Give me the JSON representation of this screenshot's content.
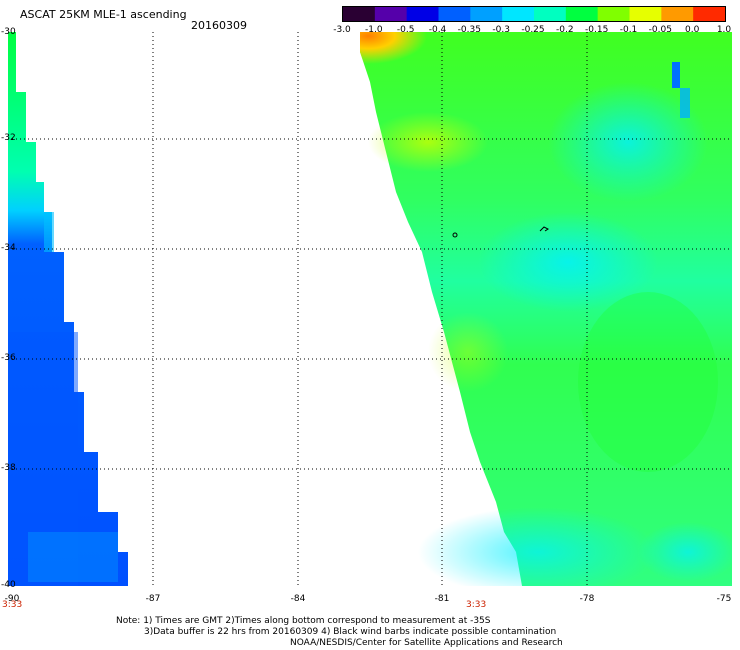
{
  "header": {
    "title": "ASCAT 25KM MLE-1 ascending",
    "date": "20160309"
  },
  "colorbar": {
    "labels": [
      "-3.0",
      "-1.0",
      "-0.5",
      "-0.4",
      "-0.35",
      "-0.3",
      "-0.25",
      "-0.2",
      "-0.15",
      "-0.1",
      "-0.05",
      "0.0",
      "1.0"
    ],
    "colors": [
      "#2a0033",
      "#5500aa",
      "#0000e6",
      "#0060ff",
      "#00a0ff",
      "#00e6ff",
      "#00ffc0",
      "#00ff40",
      "#80ff00",
      "#e6ff00",
      "#ff9a00",
      "#ff2a00"
    ]
  },
  "axes": {
    "y_labels": [
      "-30",
      "-32",
      "-34",
      "-36",
      "-38",
      "-40"
    ],
    "x_labels": [
      "-90",
      "-87",
      "-84",
      "-81",
      "-78",
      "-75"
    ]
  },
  "times": {
    "left": "3:33",
    "center": "3:33"
  },
  "notes": {
    "line1": "Note: 1) Times are GMT 2)Times along bottom correspond to measurement at -35S",
    "line2": "3)Data buffer is 22 hrs from 20160309 4) Black wind barbs indicate possible contamination",
    "line3": "NOAA/NESDIS/Center for Satellite Applications and Research"
  }
}
